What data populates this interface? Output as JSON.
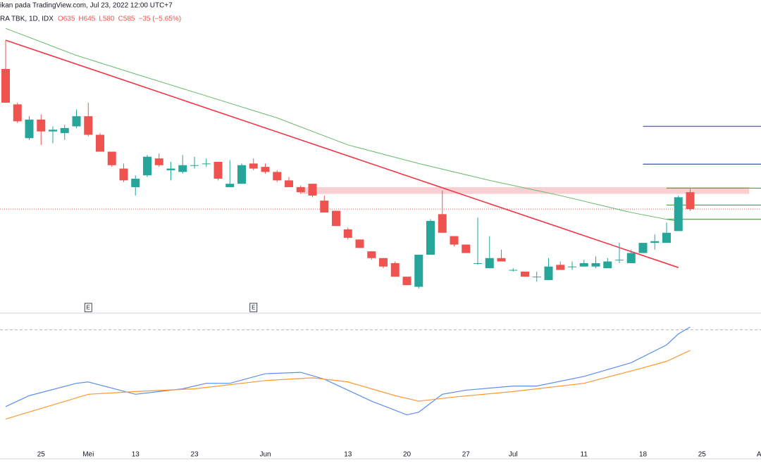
{
  "header": {
    "line1": "ikan pada TradingView.com, Jul 23, 2022 12:00 UTC+7",
    "symbol": "RA TBK, 1D, IDX",
    "ohlc": [
      "O635",
      "H645",
      "L580",
      "C585",
      "−35 (−5.65%)"
    ]
  },
  "chart_data": [
    {
      "type": "candlestick",
      "categories": [
        null,
        null,
        null,
        "25",
        null,
        null,
        null,
        "Mei",
        null,
        null,
        null,
        "13",
        null,
        null,
        null,
        null,
        "23",
        null,
        null,
        null,
        null,
        null,
        "Jun",
        null,
        null,
        null,
        null,
        null,
        null,
        "13",
        null,
        null,
        null,
        null,
        "20",
        null,
        null,
        null,
        null,
        "27",
        null,
        null,
        null,
        "Jul",
        null,
        null,
        null,
        null,
        null,
        "11",
        null,
        null,
        null,
        null,
        "18",
        null,
        null,
        null,
        null,
        "25",
        null,
        null,
        null,
        null,
        "Ag"
      ],
      "open": [
        1000,
        895,
        795,
        850,
        815,
        810,
        830,
        860,
        805,
        755,
        705,
        650,
        685,
        735,
        700,
        695,
        715,
        720,
        725,
        650,
        660,
        720,
        710,
        695,
        670,
        650,
        660,
        610,
        580,
        525,
        495,
        460,
        440,
        425,
        385,
        355,
        450,
        570,
        505,
        480,
        425,
        410,
        440,
        405,
        400,
        385,
        375,
        420,
        415,
        415,
        415,
        410,
        435,
        425,
        455,
        485,
        485,
        520,
        635,
        null,
        null,
        null,
        null,
        null,
        null
      ],
      "high": [
        1085,
        900,
        860,
        865,
        830,
        835,
        880,
        900,
        810,
        755,
        720,
        685,
        745,
        750,
        725,
        745,
        740,
        735,
        725,
        730,
        720,
        735,
        720,
        700,
        680,
        655,
        660,
        625,
        580,
        530,
        495,
        460,
        440,
        430,
        385,
        450,
        555,
        640,
        505,
        480,
        560,
        505,
        465,
        410,
        400,
        400,
        440,
        430,
        430,
        435,
        445,
        440,
        485,
        465,
        485,
        510,
        545,
        625,
        645,
        null,
        null,
        null,
        null,
        null,
        null
      ],
      "low": [
        900,
        840,
        790,
        775,
        780,
        790,
        825,
        800,
        755,
        710,
        665,
        625,
        680,
        710,
        670,
        690,
        705,
        710,
        670,
        650,
        660,
        700,
        690,
        665,
        650,
        630,
        620,
        575,
        535,
        495,
        470,
        435,
        410,
        385,
        360,
        350,
        450,
        515,
        475,
        455,
        420,
        410,
        430,
        400,
        385,
        370,
        375,
        405,
        405,
        415,
        410,
        410,
        425,
        425,
        455,
        465,
        485,
        520,
        580,
        null,
        null,
        null,
        null,
        null,
        null
      ],
      "close": [
        900,
        845,
        850,
        815,
        820,
        825,
        860,
        805,
        755,
        715,
        670,
        675,
        740,
        715,
        705,
        715,
        715,
        720,
        675,
        660,
        715,
        705,
        695,
        670,
        650,
        635,
        625,
        575,
        535,
        500,
        470,
        440,
        415,
        385,
        360,
        450,
        550,
        515,
        480,
        455,
        425,
        440,
        430,
        405,
        385,
        385,
        415,
        405,
        415,
        425,
        425,
        430,
        435,
        455,
        485,
        490,
        515,
        620,
        585,
        null,
        null,
        null,
        null,
        null,
        null
      ],
      "up_color": "#26a69a",
      "down_color": "#ef5350",
      "ylim": [
        277,
        1204
      ],
      "last_price": 585,
      "ma": {
        "x": [
          0,
          6,
          11,
          17,
          23,
          29,
          35,
          41,
          47,
          53,
          57
        ],
        "values": [
          1120,
          1040,
          985,
          920,
          855,
          775,
          720,
          670,
          625,
          575,
          548
        ],
        "color": "#66bb6a"
      },
      "trendline": {
        "x": [
          0,
          57
        ],
        "values": [
          1085,
          412
        ],
        "color": "#f23645"
      },
      "zone": {
        "from": 25,
        "to": 63,
        "low": 630,
        "high": 650,
        "color": "#f8d0d3"
      },
      "levels": [
        {
          "value": 830,
          "from": 54,
          "color": "#2962ff"
        },
        {
          "value": 718,
          "from": 54,
          "color": "#2962ff"
        },
        {
          "value": 647,
          "from": 56,
          "color": "#4caf50"
        },
        {
          "value": 597,
          "from": 56,
          "color": "#4caf50"
        },
        {
          "value": 555,
          "from": 56,
          "color": "#4caf50"
        }
      ],
      "events": [
        {
          "x": 7,
          "label": "E"
        },
        {
          "x": 21,
          "label": "E"
        }
      ]
    },
    {
      "type": "line",
      "ylim": [
        0,
        100
      ],
      "level": 93,
      "series": [
        {
          "color": "#5b8def",
          "x": [
            0,
            2,
            6,
            7,
            11,
            15,
            17,
            19,
            22,
            25,
            27,
            31,
            34,
            35,
            37,
            39,
            43,
            45,
            49,
            53,
            56,
            57,
            58
          ],
          "values": [
            37,
            45,
            54,
            55,
            46,
            50,
            54,
            54,
            61,
            62,
            57,
            41,
            31,
            33,
            46,
            49,
            52,
            52,
            59,
            69,
            82,
            90,
            95
          ]
        },
        {
          "color": "#ff9830",
          "x": [
            0,
            7,
            11,
            16,
            22,
            26,
            29,
            33,
            35,
            38,
            43,
            49,
            53,
            56,
            58
          ],
          "values": [
            28,
            46,
            48,
            50,
            56,
            58,
            55,
            45,
            41,
            44,
            48,
            54,
            63,
            70,
            78
          ]
        }
      ]
    }
  ]
}
